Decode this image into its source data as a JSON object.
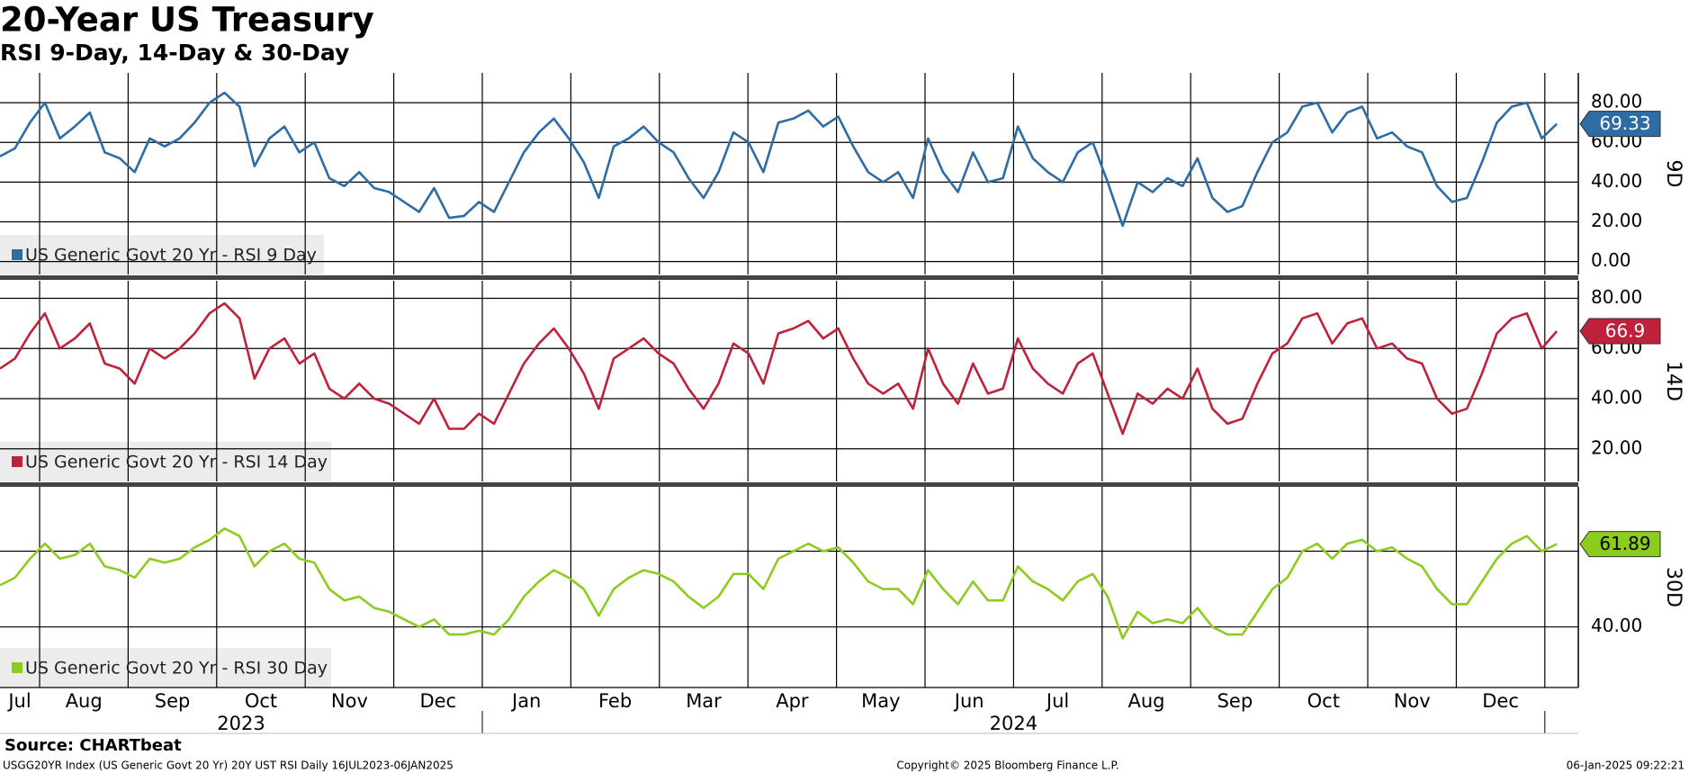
{
  "title": "20-Year US Treasury",
  "subtitle": "RSI 9-Day, 14-Day & 30-Day",
  "x_axis": {
    "months": [
      "Jul",
      "Aug",
      "Sep",
      "Oct",
      "Nov",
      "Dec",
      "Jan",
      "Feb",
      "Mar",
      "Apr",
      "May",
      "Jun",
      "Jul",
      "Aug",
      "Sep",
      "Oct",
      "Nov",
      "Dec"
    ],
    "years": [
      "2023",
      "2024"
    ]
  },
  "source": "Source: CHARTbeat",
  "footer": {
    "left": "USGG20YR Index (US Generic Govt 20 Yr) 20Y UST RSI  Daily 16JUL2023-06JAN2025",
    "center": "Copyright© 2025 Bloomberg Finance L.P.",
    "right": "06-Jan-2025 09:22:21"
  },
  "chart_data": [
    {
      "type": "line",
      "panel_label": "9D",
      "grid": true,
      "ylim": [
        -6.5,
        95
      ],
      "yticks": [
        {
          "value": 0,
          "label": "0.00"
        },
        {
          "value": 20,
          "label": "20.00"
        },
        {
          "value": 40,
          "label": "40.00"
        },
        {
          "value": 60,
          "label": "60.00"
        },
        {
          "value": 80,
          "label": "80.00"
        }
      ],
      "series": [
        {
          "name": "US Generic Govt 20 Yr - RSI 9 Day",
          "color": "#2e6ca4",
          "values": [
            53,
            57,
            70,
            80,
            62,
            68,
            75,
            55,
            52,
            45,
            62,
            58,
            62,
            70,
            80,
            85,
            78,
            48,
            62,
            68,
            55,
            60,
            42,
            38,
            45,
            37,
            35,
            30,
            25,
            37,
            22,
            23,
            30,
            25,
            40,
            55,
            65,
            72,
            62,
            50,
            32,
            58,
            62,
            68,
            60,
            55,
            42,
            32,
            45,
            65,
            60,
            45,
            70,
            72,
            76,
            68,
            73,
            58,
            45,
            40,
            45,
            32,
            62,
            45,
            35,
            55,
            40,
            42,
            68,
            52,
            45,
            40,
            55,
            60,
            40,
            18,
            40,
            35,
            42,
            38,
            52,
            32,
            25,
            28,
            45,
            60,
            65,
            78,
            80,
            65,
            75,
            78,
            62,
            65,
            58,
            55,
            38,
            30,
            32,
            50,
            70,
            78,
            80,
            62,
            69.33
          ]
        }
      ]
    },
    {
      "type": "line",
      "panel_label": "14D",
      "grid": true,
      "ylim": [
        7,
        87
      ],
      "yticks": [
        {
          "value": 20,
          "label": "20.00"
        },
        {
          "value": 40,
          "label": "40.00"
        },
        {
          "value": 60,
          "label": "60.00"
        },
        {
          "value": 80,
          "label": "80.00"
        }
      ],
      "series": [
        {
          "name": "US Generic Govt 20 Yr - RSI 14 Day",
          "color": "#c0213a",
          "values": [
            52,
            56,
            66,
            74,
            60,
            64,
            70,
            54,
            52,
            46,
            60,
            56,
            60,
            66,
            74,
            78,
            72,
            48,
            60,
            64,
            54,
            58,
            44,
            40,
            46,
            40,
            38,
            34,
            30,
            40,
            28,
            28,
            34,
            30,
            42,
            54,
            62,
            68,
            60,
            50,
            36,
            56,
            60,
            64,
            58,
            54,
            44,
            36,
            46,
            62,
            58,
            46,
            66,
            68,
            71,
            64,
            68,
            56,
            46,
            42,
            46,
            36,
            60,
            46,
            38,
            54,
            42,
            44,
            64,
            52,
            46,
            42,
            54,
            58,
            42,
            26,
            42,
            38,
            44,
            40,
            52,
            36,
            30,
            32,
            46,
            58,
            62,
            72,
            74,
            62,
            70,
            72,
            60,
            62,
            56,
            54,
            40,
            34,
            36,
            50,
            66,
            72,
            74,
            60,
            66.9
          ]
        }
      ]
    },
    {
      "type": "line",
      "panel_label": "30D",
      "grid": true,
      "ylim": [
        24,
        77
      ],
      "yticks": [
        {
          "value": 40,
          "label": "40.00"
        },
        {
          "value": 60,
          "label": "60.00"
        }
      ],
      "series": [
        {
          "name": "US Generic Govt 20 Yr - RSI 30 Day",
          "color": "#8ccc1e",
          "values": [
            51,
            53,
            58,
            62,
            58,
            59,
            62,
            56,
            55,
            53,
            58,
            57,
            58,
            61,
            63,
            66,
            64,
            56,
            60,
            62,
            58,
            57,
            50,
            47,
            48,
            45,
            44,
            42,
            40,
            42,
            38,
            38,
            39,
            38,
            42,
            48,
            52,
            55,
            53,
            50,
            43,
            50,
            53,
            55,
            54,
            52,
            48,
            45,
            48,
            54,
            54,
            50,
            58,
            60,
            62,
            60,
            61,
            57,
            52,
            50,
            50,
            46,
            55,
            50,
            46,
            52,
            47,
            47,
            56,
            52,
            50,
            47,
            52,
            54,
            48,
            37,
            44,
            41,
            42,
            41,
            45,
            40,
            38,
            38,
            44,
            50,
            53,
            60,
            62,
            58,
            62,
            63,
            60,
            61,
            58,
            56,
            50,
            46,
            46,
            52,
            58,
            62,
            64,
            60,
            61.89
          ]
        }
      ]
    }
  ]
}
